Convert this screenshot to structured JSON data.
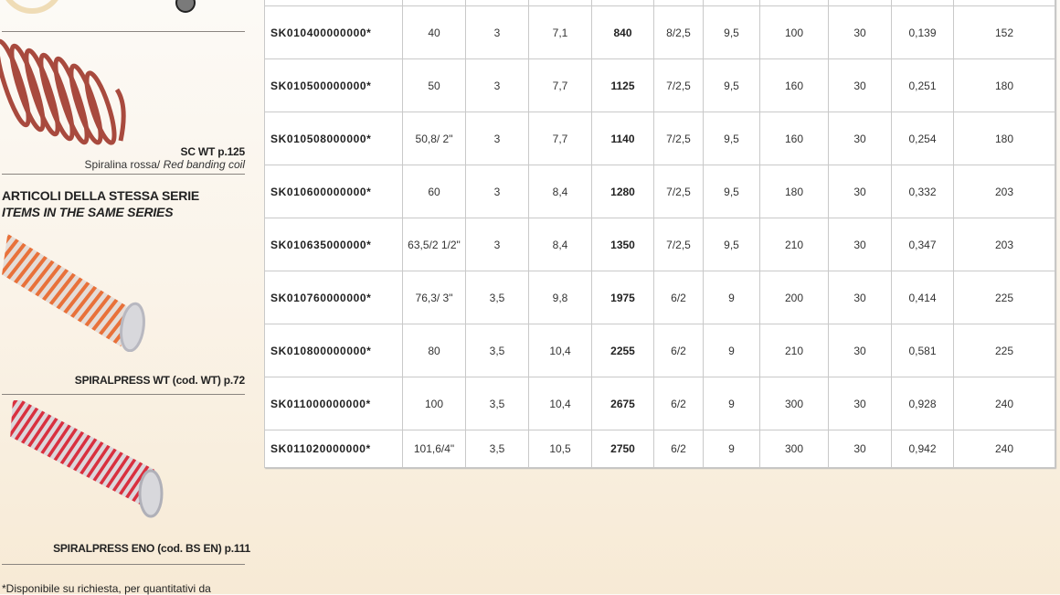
{
  "sidebar": {
    "accessory": {
      "title": "SC WT p.125",
      "subtitle_it": "Spiralina rossa/",
      "subtitle_en": "Red banding coil"
    },
    "series_heading_it": "ARTICOLI DELLA STESSA SERIE",
    "series_heading_en": "ITEMS IN THE SAME SERIES",
    "related": [
      {
        "label": "SPIRALPRESS WT (cod. WT) p.72",
        "color": "#e8713a"
      },
      {
        "label": "SPIRALPRESS ENO (cod. BS EN) p.111",
        "color": "#d9303f"
      }
    ],
    "footnote": "*Disponibile su richiesta, per quantitativi da"
  },
  "table": {
    "rows": [
      [
        "SK010400000000*",
        "40",
        "3",
        "7,1",
        "840",
        "8/2,5",
        "9,5",
        "100",
        "30",
        "0,139",
        "152"
      ],
      [
        "SK010500000000*",
        "50",
        "3",
        "7,7",
        "1125",
        "7/2,5",
        "9,5",
        "160",
        "30",
        "0,251",
        "180"
      ],
      [
        "SK010508000000*",
        "50,8/ 2\"",
        "3",
        "7,7",
        "1140",
        "7/2,5",
        "9,5",
        "160",
        "30",
        "0,254",
        "180"
      ],
      [
        "SK010600000000*",
        "60",
        "3",
        "8,4",
        "1280",
        "7/2,5",
        "9,5",
        "180",
        "30",
        "0,332",
        "203"
      ],
      [
        "SK010635000000*",
        "63,5/2 1/2\"",
        "3",
        "8,4",
        "1350",
        "7/2,5",
        "9,5",
        "210",
        "30",
        "0,347",
        "203"
      ],
      [
        "SK010760000000*",
        "76,3/ 3\"",
        "3,5",
        "9,8",
        "1975",
        "6/2",
        "9",
        "200",
        "30",
        "0,414",
        "225"
      ],
      [
        "SK010800000000*",
        "80",
        "3,5",
        "10,4",
        "2255",
        "6/2",
        "9",
        "210",
        "30",
        "0,581",
        "225"
      ],
      [
        "SK011000000000*",
        "100",
        "3,5",
        "10,4",
        "2675",
        "6/2",
        "9",
        "300",
        "30",
        "0,928",
        "240"
      ],
      [
        "SK011020000000*",
        "101,6/4\"",
        "3,5",
        "10,5",
        "2750",
        "6/2",
        "9",
        "300",
        "30",
        "0,942",
        "240"
      ]
    ]
  }
}
